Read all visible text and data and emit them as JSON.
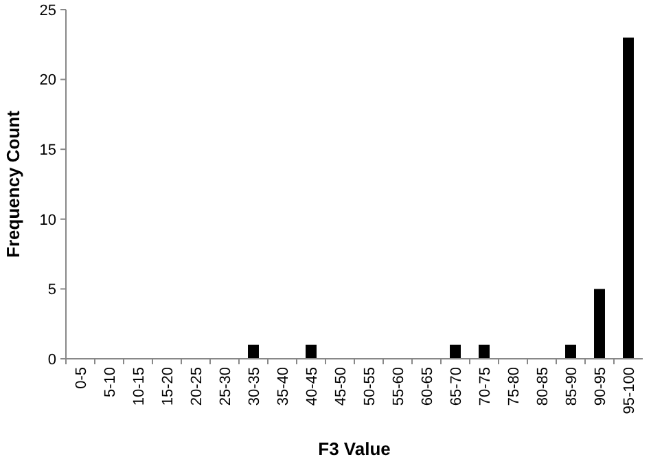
{
  "chart_data": {
    "type": "bar",
    "xlabel": "F3 Value",
    "ylabel": "Frequency Count",
    "categories": [
      "0-5",
      "5-10",
      "10-15",
      "15-20",
      "20-25",
      "25-30",
      "30-35",
      "35-40",
      "40-45",
      "45-50",
      "50-55",
      "55-60",
      "60-65",
      "65-70",
      "70-75",
      "75-80",
      "80-85",
      "85-90",
      "90-95",
      "95-100"
    ],
    "values": [
      0,
      0,
      0,
      0,
      0,
      0,
      1,
      0,
      1,
      0,
      0,
      0,
      0,
      1,
      1,
      0,
      0,
      1,
      5,
      23
    ],
    "color": "#000000",
    "ylim": [
      0,
      25
    ],
    "yticks": [
      0,
      5,
      10,
      15,
      20,
      25
    ],
    "grid": false
  }
}
